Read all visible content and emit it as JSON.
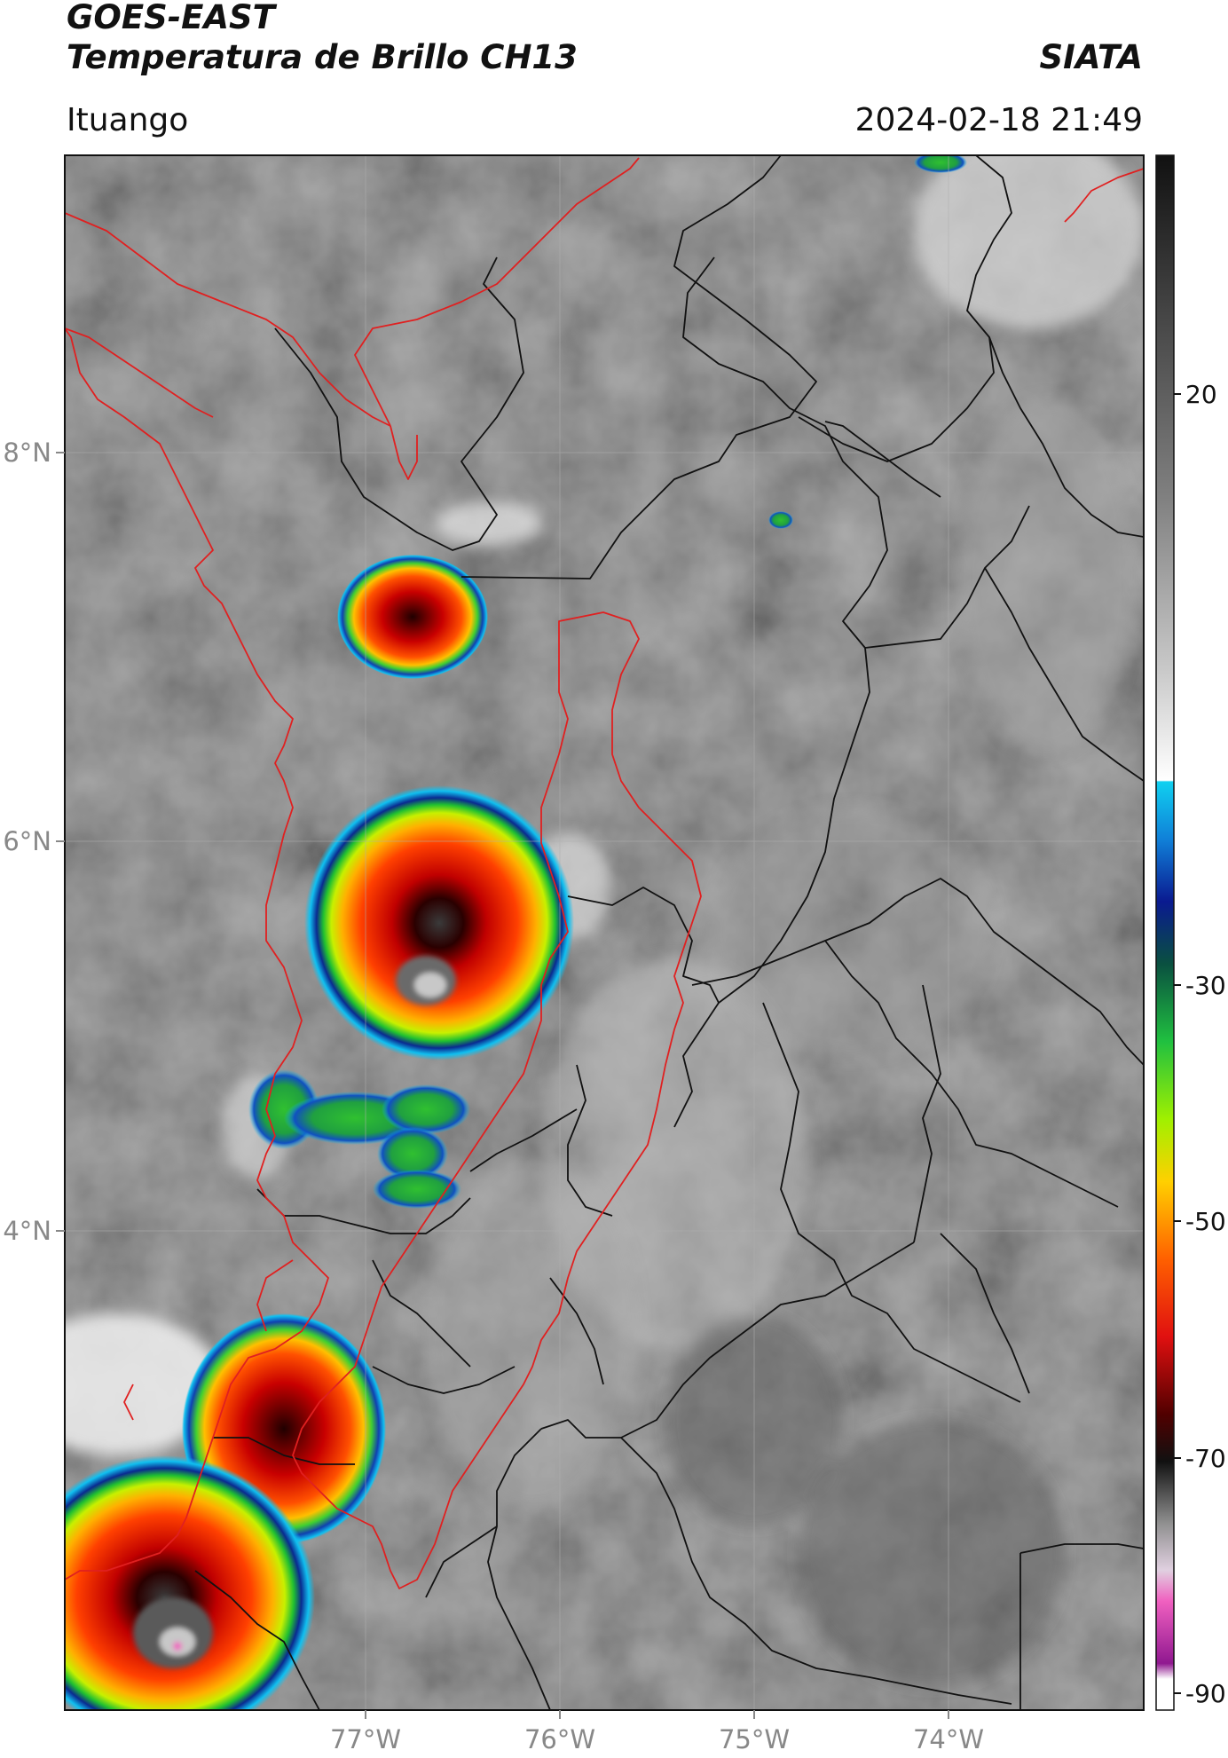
{
  "header": {
    "title": "GOES-EAST",
    "subtitle": "Temperatura de Brillo CH13",
    "organization": "SIATA",
    "location": "Ituango",
    "datetime": "2024-02-18 21:49"
  },
  "map": {
    "lat_labels": [
      "8°N",
      "6°N",
      "4°N"
    ],
    "lon_labels": [
      "77°W",
      "76°W",
      "75°W",
      "74°W"
    ],
    "colors": {
      "background_cloud": "#7a7a7a",
      "country_border": "#e02020",
      "department_border": "#111111",
      "gridline": "#b0b0b0"
    }
  },
  "colorbar": {
    "ticks": [
      "20",
      "-30",
      "-50",
      "-70",
      "-90"
    ],
    "stops": [
      "#111111",
      "#555555",
      "#999999",
      "#dddddd",
      "#ffffff",
      "#1ac8f0",
      "#1a50d0",
      "#0a1a80",
      "#1aa040",
      "#40e040",
      "#d0f000",
      "#ffc000",
      "#ff6000",
      "#e01010",
      "#600000",
      "#111111",
      "#909090",
      "#d0d0d0",
      "#f060c0",
      "#a020a0",
      "#ffffff"
    ]
  }
}
